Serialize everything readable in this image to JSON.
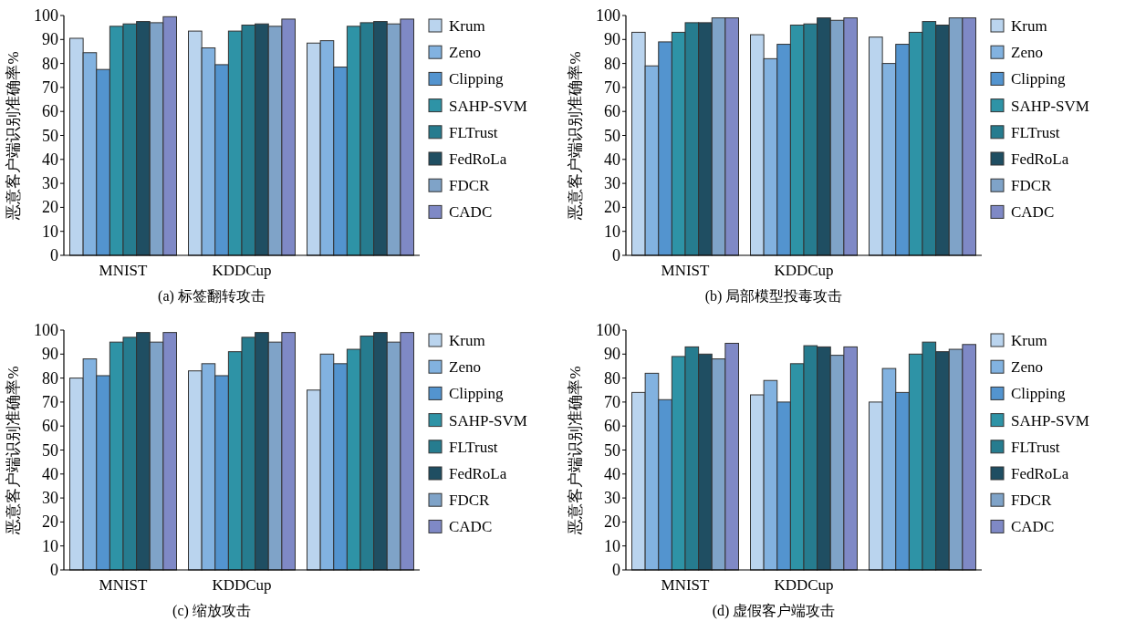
{
  "chart_data": [
    {
      "type": "bar",
      "xlabel": "(a) 标签翻转攻击",
      "ylabel": "恶意客户端识别准确率%",
      "categories": [
        "MNIST",
        "KDDCup",
        null
      ],
      "ylim": [
        0,
        100
      ],
      "yticks": [
        0,
        10,
        20,
        30,
        40,
        50,
        60,
        70,
        80,
        90,
        100
      ],
      "legend": "right",
      "series": [
        {
          "name": "Krum",
          "color": "#bad4ee",
          "values": [
            90.5,
            93.5,
            88.5
          ]
        },
        {
          "name": "Zeno",
          "color": "#82b2e0",
          "values": [
            84.5,
            86.5,
            89.5
          ]
        },
        {
          "name": "Clipping",
          "color": "#5394cf",
          "values": [
            77.5,
            79.5,
            78.5
          ]
        },
        {
          "name": "SAHP-SVM",
          "color": "#2e93a6",
          "values": [
            95.5,
            93.5,
            95.5
          ]
        },
        {
          "name": "FLTrust",
          "color": "#267c8f",
          "values": [
            96.5,
            96,
            97
          ]
        },
        {
          "name": "FedRoLa",
          "color": "#1f4e62",
          "values": [
            97.5,
            96.5,
            97.5
          ]
        },
        {
          "name": "FDCR",
          "color": "#7fa3c8",
          "values": [
            97,
            95.5,
            96.5
          ]
        },
        {
          "name": "CADC",
          "color": "#7f89c6",
          "values": [
            99.5,
            98.5,
            98.5
          ]
        }
      ]
    },
    {
      "type": "bar",
      "xlabel": "(b) 局部模型投毒攻击",
      "ylabel": "恶意客户端识别准确率%",
      "categories": [
        "MNIST",
        "KDDCup",
        null
      ],
      "ylim": [
        0,
        100
      ],
      "yticks": [
        0,
        10,
        20,
        30,
        40,
        50,
        60,
        70,
        80,
        90,
        100
      ],
      "legend": "right",
      "series": [
        {
          "name": "Krum",
          "color": "#bad4ee",
          "values": [
            93,
            92,
            91
          ]
        },
        {
          "name": "Zeno",
          "color": "#82b2e0",
          "values": [
            79,
            82,
            80
          ]
        },
        {
          "name": "Clipping",
          "color": "#5394cf",
          "values": [
            89,
            88,
            88
          ]
        },
        {
          "name": "SAHP-SVM",
          "color": "#2e93a6",
          "values": [
            93,
            96,
            93
          ]
        },
        {
          "name": "FLTrust",
          "color": "#267c8f",
          "values": [
            97,
            96.5,
            97.5
          ]
        },
        {
          "name": "FedRoLa",
          "color": "#1f4e62",
          "values": [
            97,
            99,
            96
          ]
        },
        {
          "name": "FDCR",
          "color": "#7fa3c8",
          "values": [
            99,
            98,
            99
          ]
        },
        {
          "name": "CADC",
          "color": "#7f89c6",
          "values": [
            99,
            99,
            99
          ]
        }
      ]
    },
    {
      "type": "bar",
      "xlabel": "(c) 缩放攻击",
      "ylabel": "恶意客户端识别准确率%",
      "categories": [
        "MNIST",
        "KDDCup",
        null
      ],
      "ylim": [
        0,
        100
      ],
      "yticks": [
        0,
        10,
        20,
        30,
        40,
        50,
        60,
        70,
        80,
        90,
        100
      ],
      "legend": "right",
      "series": [
        {
          "name": "Krum",
          "color": "#bad4ee",
          "values": [
            80,
            83,
            75
          ]
        },
        {
          "name": "Zeno",
          "color": "#82b2e0",
          "values": [
            88,
            86,
            90
          ]
        },
        {
          "name": "Clipping",
          "color": "#5394cf",
          "values": [
            81,
            81,
            86
          ]
        },
        {
          "name": "SAHP-SVM",
          "color": "#2e93a6",
          "values": [
            95,
            91,
            92
          ]
        },
        {
          "name": "FLTrust",
          "color": "#267c8f",
          "values": [
            97,
            97,
            97.5
          ]
        },
        {
          "name": "FedRoLa",
          "color": "#1f4e62",
          "values": [
            99,
            99,
            99
          ]
        },
        {
          "name": "FDCR",
          "color": "#7fa3c8",
          "values": [
            95,
            95,
            95
          ]
        },
        {
          "name": "CADC",
          "color": "#7f89c6",
          "values": [
            99,
            99,
            99
          ]
        }
      ]
    },
    {
      "type": "bar",
      "xlabel": "(d) 虚假客户端攻击",
      "ylabel": "恶意客户端识别准确率%",
      "categories": [
        "MNIST",
        "KDDCup",
        null
      ],
      "ylim": [
        0,
        100
      ],
      "yticks": [
        0,
        10,
        20,
        30,
        40,
        50,
        60,
        70,
        80,
        90,
        100
      ],
      "legend": "right",
      "series": [
        {
          "name": "Krum",
          "color": "#bad4ee",
          "values": [
            74,
            73,
            70
          ]
        },
        {
          "name": "Zeno",
          "color": "#82b2e0",
          "values": [
            82,
            79,
            84
          ]
        },
        {
          "name": "Clipping",
          "color": "#5394cf",
          "values": [
            71,
            70,
            74
          ]
        },
        {
          "name": "SAHP-SVM",
          "color": "#2e93a6",
          "values": [
            89,
            86,
            90
          ]
        },
        {
          "name": "FLTrust",
          "color": "#267c8f",
          "values": [
            93,
            93.5,
            95
          ]
        },
        {
          "name": "FedRoLa",
          "color": "#1f4e62",
          "values": [
            90,
            93,
            91
          ]
        },
        {
          "name": "FDCR",
          "color": "#7fa3c8",
          "values": [
            88,
            89.5,
            92
          ]
        },
        {
          "name": "CADC",
          "color": "#7f89c6",
          "values": [
            94.5,
            93,
            94
          ]
        }
      ]
    }
  ]
}
